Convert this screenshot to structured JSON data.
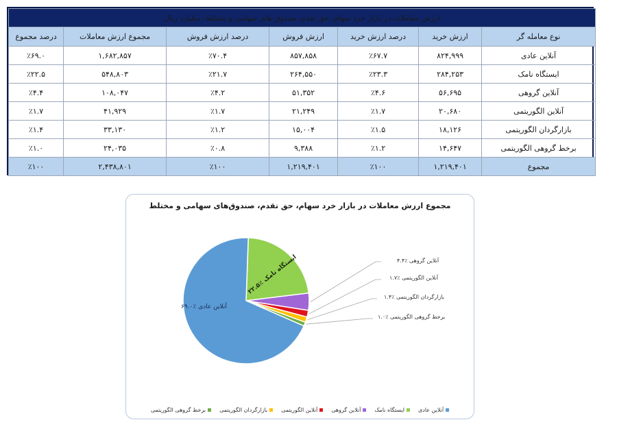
{
  "table": {
    "title": "ارزش معاملات در بازار خرد سهام، حق تقدم، صندوق های سهامی و مختلط- میلیارد ریال",
    "headers": [
      "نوع معامله گر",
      "ارزش خرید",
      "درصد ارزش خرید",
      "ارزش فروش",
      "درصد ارزش فروش",
      "مجموع ارزش معاملات",
      "درصد مجموع"
    ],
    "rows": [
      {
        "type": "آنلاین عادی",
        "buy": "۸۲۴,۹۹۹",
        "buy_pct": "٪۶۷.۷",
        "sell": "۸۵۷,۸۵۸",
        "sell_pct": "٪۷۰.۴",
        "total": "۱,۶۸۲,۸۵۷",
        "total_pct": "٪۶۹.۰"
      },
      {
        "type": "ایستگاه نامک",
        "buy": "۲۸۴,۲۵۳",
        "buy_pct": "٪۲۳.۳",
        "sell": "۲۶۴,۵۵۰",
        "sell_pct": "٪۲۱.۷",
        "total": "۵۴۸,۸۰۳",
        "total_pct": "٪۲۲.۵"
      },
      {
        "type": "آنلاین گروهی",
        "buy": "۵۶,۶۹۵",
        "buy_pct": "٪۴.۶",
        "sell": "۵۱,۳۵۲",
        "sell_pct": "٪۴.۲",
        "total": "۱۰۸,۰۴۷",
        "total_pct": "٪۴.۴"
      },
      {
        "type": "آنلاین الگوریتمی",
        "buy": "۲۰,۶۸۰",
        "buy_pct": "٪۱.۷",
        "sell": "۲۱,۲۴۹",
        "sell_pct": "٪۱.۷",
        "total": "۴۱,۹۲۹",
        "total_pct": "٪۱.۷"
      },
      {
        "type": "بازارگردان الگوریتمی",
        "buy": "۱۸,۱۲۶",
        "buy_pct": "٪۱.۵",
        "sell": "۱۵,۰۰۴",
        "sell_pct": "٪۱.۲",
        "total": "۳۳,۱۳۰",
        "total_pct": "٪۱.۴"
      },
      {
        "type": "برخط گروهی الگوریتمی",
        "buy": "۱۴,۶۴۷",
        "buy_pct": "٪۱.۲",
        "sell": "۹,۳۸۸",
        "sell_pct": "٪۰.۸",
        "total": "۲۴,۰۳۵",
        "total_pct": "٪۱.۰"
      }
    ],
    "total_row": {
      "type": "مجموع",
      "buy": "۱,۲۱۹,۴۰۱",
      "buy_pct": "٪۱۰۰",
      "sell": "۱,۲۱۹,۴۰۱",
      "sell_pct": "٪۱۰۰",
      "total": "۲,۴۳۸,۸۰۱",
      "total_pct": "٪۱۰۰"
    }
  },
  "chart": {
    "title": "مجموع ارزش معاملات در بازار خرد سهام، حق تقدم، صندوق‌های سهامی و مختلط",
    "in_labels": {
      "online_normal": "آنلاین عادی ٪۶۹.۰",
      "namak": "ایستگاه نامک ٪۲۲.۵"
    },
    "callouts": [
      "آنلاین گروهی ٪۴.۴",
      "آنلاین الگوریتمی ٪۱.۷",
      "بازارگردان الگوریتمی ٪۱.۴",
      "برخط گروهی الگوریتمی ٪۱.۰"
    ],
    "legend": [
      {
        "label": "آنلاین عادی",
        "color": "#5b9bd5"
      },
      {
        "label": "ایستگاه نامک",
        "color": "#92d050"
      },
      {
        "label": "آنلاین گروهی",
        "color": "#a066d6"
      },
      {
        "label": "آنلاین الگوریتمی",
        "color": "#e0141e"
      },
      {
        "label": "بازارگردان الگوریتمی",
        "color": "#ffc000"
      },
      {
        "label": "برخط گروهی الگوریتمی",
        "color": "#70ad47"
      }
    ]
  },
  "chart_data": {
    "type": "pie",
    "title": "مجموع ارزش معاملات در بازار خرد سهام، حق تقدم، صندوق‌های سهامی و مختلط",
    "categories": [
      "آنلاین عادی",
      "ایستگاه نامک",
      "آنلاین گروهی",
      "آنلاین الگوریتمی",
      "بازارگردان الگوریتمی",
      "برخط گروهی الگوریتمی"
    ],
    "values": [
      69.0,
      22.5,
      4.4,
      1.7,
      1.4,
      1.0
    ],
    "colors": [
      "#5b9bd5",
      "#92d050",
      "#a066d6",
      "#e0141e",
      "#ffc000",
      "#70ad47"
    ],
    "unit": "%",
    "legend_position": "bottom"
  }
}
